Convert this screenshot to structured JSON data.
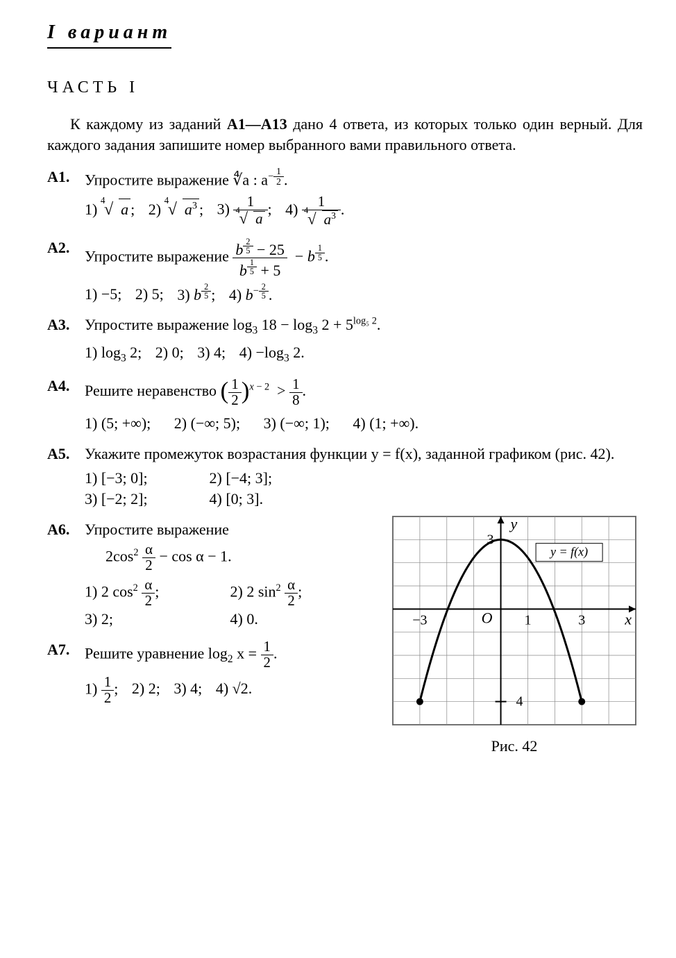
{
  "header": {
    "variant": "I вариант",
    "part": "ЧАСТЬ I"
  },
  "intro": {
    "pre": "К каждому из заданий ",
    "bold": "А1—А13",
    "post": " дано 4 ответа, из кото­рых только один верный. Для каждого задания запишите номер выбранного вами правильного ответа."
  },
  "tasks": {
    "a1": {
      "num": "А1.",
      "text": "Упростите выражение ∜a : a",
      "exp_num": "1",
      "exp_den": "2"
    },
    "a2": {
      "num": "А2.",
      "text": "Упростите выражение "
    },
    "a3": {
      "num": "А3.",
      "text": "Упростите выражение log",
      "rest_a": " 18 − log",
      "rest_b": " 2 + 5",
      "sup": "log₅ 2",
      "o1": "1) log",
      "o1b": " 2;",
      "o2": "2) 0;",
      "o3": "3) 4;",
      "o4": "4) −log",
      "o4b": " 2."
    },
    "a4": {
      "num": "А4.",
      "text": "Решите неравенство ",
      "o1": "1) (5; +∞);",
      "o2": "2) (−∞; 5);",
      "o3": "3) (−∞; 1);",
      "o4": "4) (1; +∞)."
    },
    "a5": {
      "num": "А5.",
      "text": "Укажите промежуток возрастания функции y = f(x), заданной графиком (рис. 42).",
      "o1": "1) [−3; 0];",
      "o2": "2) [−4; 3];",
      "o3": "3) [−2; 2];",
      "o4": "4) [0; 3]."
    },
    "a6": {
      "num": "А6.",
      "text": "Упростите выражение",
      "expr": "2cos² (α/2) − cos α − 1.",
      "o1": "1) 2 cos² (α/2);",
      "o2": "2) 2 sin² (α/2);",
      "o3": "3) 2;",
      "o4": "4) 0."
    },
    "a7": {
      "num": "А7.",
      "text": "Решите уравнение log",
      "text2": " x = ",
      "o1": "1) ",
      "o2": "2) 2;",
      "o3": "3) 4;",
      "o4": "4) √2."
    }
  },
  "figure": {
    "caption": "Рис. 42",
    "func_label": "y = f(x)",
    "axis_x": "x",
    "axis_y": "y",
    "origin": "O",
    "x_ticks": [
      -3,
      1,
      3
    ],
    "y_ticks": [
      3,
      -4
    ],
    "grid_color": "#888",
    "curve_color": "#000",
    "background": "#ffffff",
    "type": "parabola",
    "vertex": [
      0,
      3
    ],
    "roots": [
      -2.6,
      2.6
    ],
    "endpoints": [
      [
        -3,
        -4
      ],
      [
        3,
        -4
      ]
    ],
    "xlim": [
      -4,
      5
    ],
    "ylim": [
      -5,
      4
    ],
    "line_width": 3
  }
}
